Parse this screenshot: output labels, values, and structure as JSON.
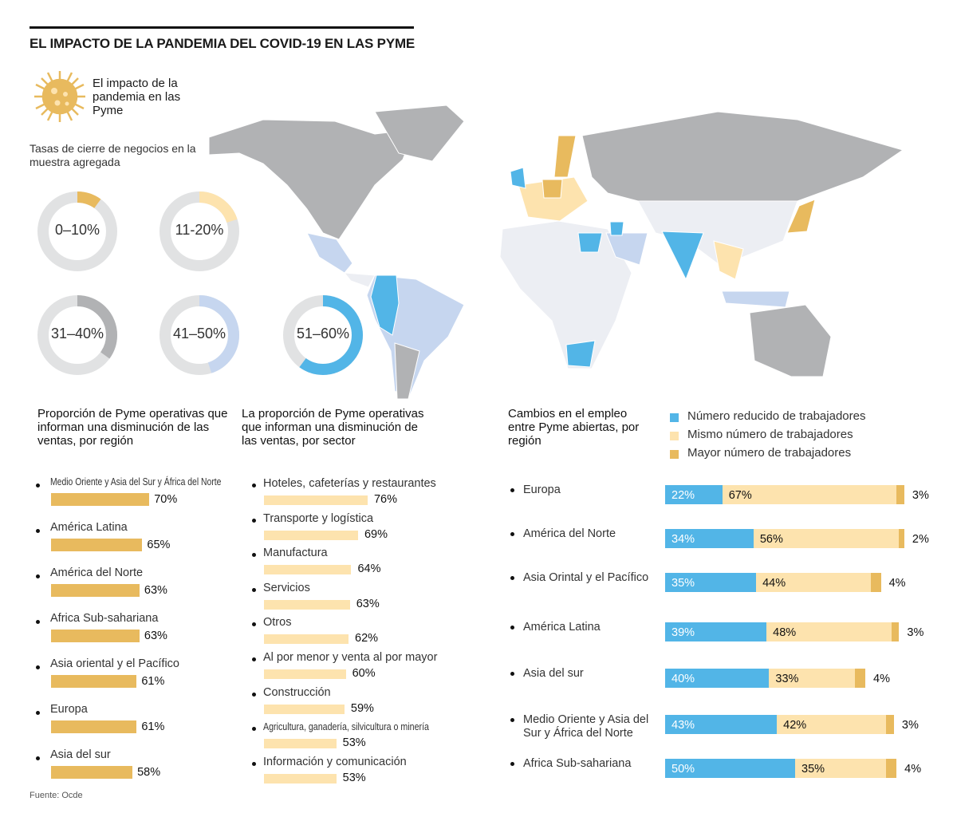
{
  "title": "EL IMPACTO DE LA PANDEMIA DEL COVID-19 EN LAS PYME",
  "intro": "El impacto de la pandemia en las Pyme",
  "icon": "virus-icon",
  "colors": {
    "blue": "#52b5e7",
    "light_yellow": "#fde3ae",
    "gold": "#e8ba5e",
    "gray": "#b1b2b4",
    "light_blue": "#c6d6ef",
    "donut_base": "#e1e2e3",
    "no_data": "#eceef3"
  },
  "chart_data": [
    {
      "type": "pie",
      "title": "Tasas de cierre de negocios en la muestra agregada",
      "categories": [
        "0–10%",
        "11-20%",
        "31–40%",
        "41–50%",
        "51–60%"
      ],
      "fill_fraction": [
        0.1,
        0.2,
        0.35,
        0.45,
        0.6
      ],
      "colors": [
        "#e8ba5e",
        "#fde3ae",
        "#b1b2b4",
        "#c6d6ef",
        "#52b5e7"
      ]
    },
    {
      "type": "bar",
      "title": "Proporción de Pyme operativas que informan una disminución de las ventas, por región",
      "categories": [
        "Medio Oriente y Asia del Sur y África del Norte",
        "América Latina",
        "América del Norte",
        "Africa Sub-sahariana",
        "Asia oriental y el Pacífico",
        "Europa",
        "Asia del sur"
      ],
      "values": [
        70,
        65,
        63,
        63,
        61,
        61,
        58
      ],
      "labels": [
        "70%",
        "65%",
        "63%",
        "63%",
        "61%",
        "61%",
        "58%"
      ],
      "color": "#e8ba5e"
    },
    {
      "type": "bar",
      "title": "La proporción de Pyme operativas que informan una disminución de las ventas, por sector",
      "categories": [
        "Hoteles, cafeterías y restaurantes",
        "Transporte y logística",
        "Manufactura",
        "Servicios",
        "Otros",
        "Al por menor y venta al por mayor",
        "Construcción",
        "Agricultura, ganadería, silvicultura o minería",
        "Información y comunicación"
      ],
      "values": [
        76,
        69,
        64,
        63,
        62,
        60,
        59,
        53,
        53
      ],
      "labels": [
        "76%",
        "69%",
        "64%",
        "63%",
        "62%",
        "60%",
        "59%",
        "53%",
        "53%"
      ],
      "color": "#fde3ae"
    },
    {
      "type": "bar",
      "stacked": true,
      "title": "Cambios en el empleo entre Pyme abiertas, por región",
      "categories": [
        "Europa",
        "América del Norte",
        "Asia Orintal y el Pacífico",
        "América Latina",
        "Asia del sur",
        "Medio Oriente y Asia del Sur y África del Norte",
        "Africa Sub-sahariana"
      ],
      "legend": "top-right",
      "series": [
        {
          "name": "Número reducido de trabajadores",
          "color": "#52b5e7",
          "values": [
            22,
            34,
            35,
            39,
            40,
            43,
            50
          ]
        },
        {
          "name": "Mismo número de trabajadores",
          "color": "#fde3ae",
          "values": [
            67,
            56,
            44,
            48,
            33,
            42,
            35
          ]
        },
        {
          "name": "Mayor número de trabajadores",
          "color": "#e8ba5e",
          "values": [
            3,
            2,
            4,
            3,
            4,
            3,
            4
          ]
        }
      ]
    }
  ],
  "source": "Fuente: Ocde"
}
